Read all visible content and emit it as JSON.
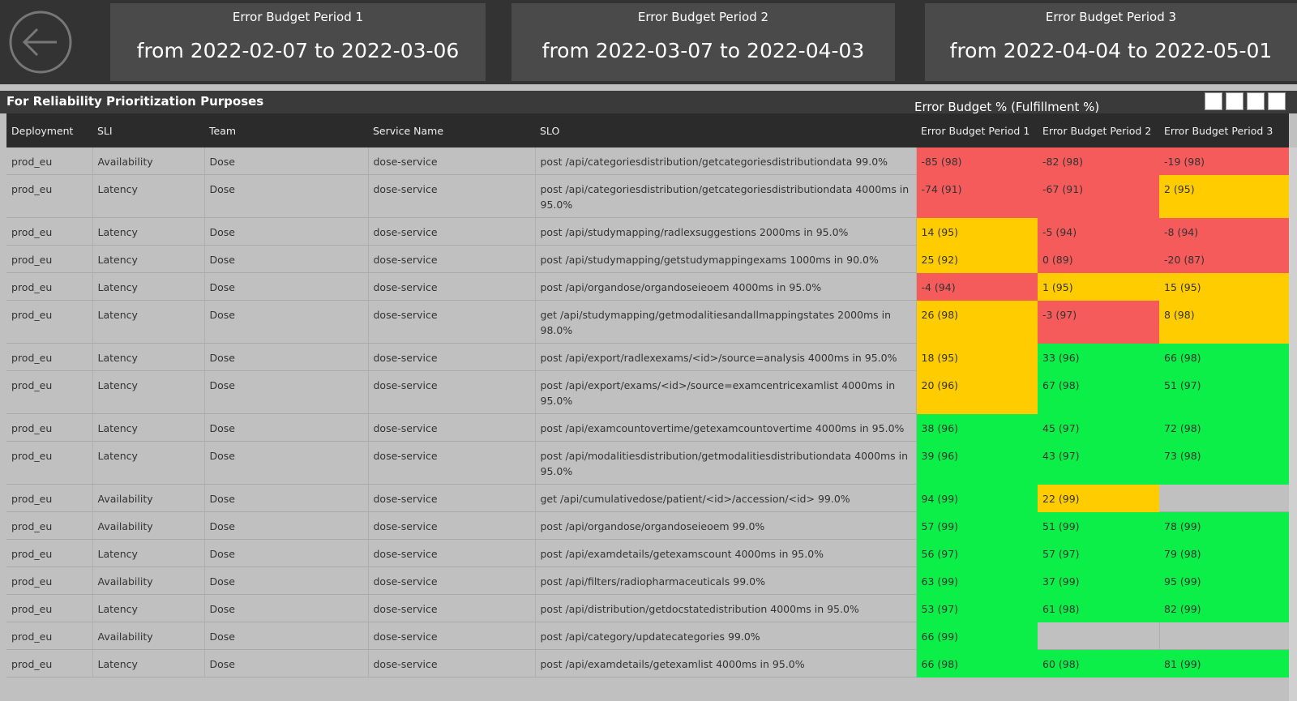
{
  "header": {
    "periods": [
      {
        "title": "Error Budget Period 1",
        "range": "from 2022-02-07 to 2022-03-06"
      },
      {
        "title": "Error Budget Period 2",
        "range": "from 2022-03-07 to 2022-04-03"
      },
      {
        "title": "Error Budget Period 3",
        "range": "from 2022-04-04 to 2022-05-01"
      }
    ]
  },
  "table": {
    "title": "For Reliability Prioritization Purposes",
    "group_label": "Error Budget % (Fulfillment %)",
    "columns": [
      "Deployment",
      "SLI",
      "Team",
      "Service Name",
      "SLO",
      "Error Budget Period 1",
      "Error Budget Period 2",
      "Error Budget Period 3"
    ],
    "rows": [
      [
        "prod_eu",
        "Availability",
        "Dose",
        "dose-service",
        "post /api/categoriesdistribution/getcategoriesdistributiondata 99.0%",
        "-85 (98)",
        "-82 (98)",
        "-19 (98)"
      ],
      [
        "prod_eu",
        "Latency",
        "Dose",
        "dose-service",
        "post /api/categoriesdistribution/getcategoriesdistributiondata 4000ms in 95.0%",
        "-74 (91)",
        "-67 (91)",
        "2 (95)"
      ],
      [
        "prod_eu",
        "Latency",
        "Dose",
        "dose-service",
        "post /api/studymapping/radlexsuggestions 2000ms in 95.0%",
        "14 (95)",
        "-5 (94)",
        "-8 (94)"
      ],
      [
        "prod_eu",
        "Latency",
        "Dose",
        "dose-service",
        "post /api/studymapping/getstudymappingexams 1000ms in 90.0%",
        "25 (92)",
        "0 (89)",
        "-20 (87)"
      ],
      [
        "prod_eu",
        "Latency",
        "Dose",
        "dose-service",
        "post /api/organdose/organdoseieoem 4000ms in 95.0%",
        "-4 (94)",
        "1 (95)",
        "15 (95)"
      ],
      [
        "prod_eu",
        "Latency",
        "Dose",
        "dose-service",
        "get /api/studymapping/getmodalitiesandallmappingstates 2000ms in 98.0%",
        "26 (98)",
        "-3 (97)",
        "8 (98)"
      ],
      [
        "prod_eu",
        "Latency",
        "Dose",
        "dose-service",
        "post /api/export/radlexexams/<id>/source=analysis 4000ms in 95.0%",
        "18 (95)",
        "33 (96)",
        "66 (98)"
      ],
      [
        "prod_eu",
        "Latency",
        "Dose",
        "dose-service",
        "post /api/export/exams/<id>/source=examcentricexamlist 4000ms in 95.0%",
        "20 (96)",
        "67 (98)",
        "51 (97)"
      ],
      [
        "prod_eu",
        "Latency",
        "Dose",
        "dose-service",
        "post /api/examcountovertime/getexamcountovertime 4000ms in 95.0%",
        "38 (96)",
        "45 (97)",
        "72 (98)"
      ],
      [
        "prod_eu",
        "Latency",
        "Dose",
        "dose-service",
        "post /api/modalitiesdistribution/getmodalitiesdistributiondata 4000ms in 95.0%",
        "39 (96)",
        "43 (97)",
        "73 (98)"
      ],
      [
        "prod_eu",
        "Availability",
        "Dose",
        "dose-service",
        "get /api/cumulativedose/patient/<id>/accession/<id> 99.0%",
        "94 (99)",
        "22 (99)",
        null
      ],
      [
        "prod_eu",
        "Availability",
        "Dose",
        "dose-service",
        "post /api/organdose/organdoseieoem 99.0%",
        "57 (99)",
        "51 (99)",
        "78 (99)"
      ],
      [
        "prod_eu",
        "Latency",
        "Dose",
        "dose-service",
        "post /api/examdetails/getexamscount 4000ms in 95.0%",
        "56 (97)",
        "57 (97)",
        "79 (98)"
      ],
      [
        "prod_eu",
        "Availability",
        "Dose",
        "dose-service",
        "post /api/filters/radiopharmaceuticals 99.0%",
        "63 (99)",
        "37 (99)",
        "95 (99)"
      ],
      [
        "prod_eu",
        "Latency",
        "Dose",
        "dose-service",
        "post /api/distribution/getdocstatedistribution 4000ms in 95.0%",
        "53 (97)",
        "61 (98)",
        "82 (99)"
      ],
      [
        "prod_eu",
        "Availability",
        "Dose",
        "dose-service",
        "post /api/category/updatecategories 99.0%",
        "66 (99)",
        null,
        null
      ],
      [
        "prod_eu",
        "Latency",
        "Dose",
        "dose-service",
        "post /api/examdetails/getexamlist 4000ms in 95.0%",
        "66 (98)",
        "60 (98)",
        "81 (99)"
      ]
    ],
    "colors": [
      [
        "#f55b5b",
        "#f55b5b",
        "#f55b5b"
      ],
      [
        "#f55b5b",
        "#f55b5b",
        "#ffcc00"
      ],
      [
        "#ffcc00",
        "#f55b5b",
        "#f55b5b"
      ],
      [
        "#ffcc00",
        "#f55b5b",
        "#f55b5b"
      ],
      [
        "#f55b5b",
        "#ffcc00",
        "#ffcc00"
      ],
      [
        "#ffcc00",
        "#f55b5b",
        "#ffcc00"
      ],
      [
        "#ffcc00",
        "#0cee48",
        "#0cee48"
      ],
      [
        "#ffcc00",
        "#0cee48",
        "#0cee48"
      ],
      [
        "#0cee48",
        "#0cee48",
        "#0cee48"
      ],
      [
        "#0cee48",
        "#0cee48",
        "#0cee48"
      ],
      [
        "#0cee48",
        "#ffcc00",
        null
      ],
      [
        "#0cee48",
        "#0cee48",
        "#0cee48"
      ],
      [
        "#0cee48",
        "#0cee48",
        "#0cee48"
      ],
      [
        "#0cee48",
        "#0cee48",
        "#0cee48"
      ],
      [
        "#0cee48",
        "#0cee48",
        "#0cee48"
      ],
      [
        "#0cee48",
        null,
        null
      ],
      [
        "#0cee48",
        "#0cee48",
        "#0cee48"
      ]
    ]
  }
}
